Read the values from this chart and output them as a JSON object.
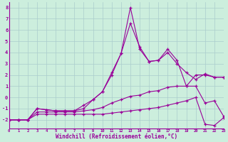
{
  "x": [
    0,
    1,
    2,
    3,
    4,
    5,
    6,
    7,
    8,
    9,
    10,
    11,
    12,
    13,
    14,
    15,
    16,
    17,
    18,
    19,
    20,
    21,
    22,
    23
  ],
  "line1": [
    -2,
    -2,
    -2,
    -1.0,
    -1.1,
    -1.2,
    -1.2,
    -1.2,
    -1.0,
    -0.2,
    0.5,
    2.0,
    3.9,
    8.0,
    4.3,
    3.2,
    3.3,
    4.3,
    3.3,
    1.0,
    2.0,
    2.0,
    1.8,
    1.8
  ],
  "line2": [
    -2,
    -2,
    -2,
    -1.0,
    -1.1,
    -1.2,
    -1.2,
    -1.2,
    -0.7,
    -0.2,
    0.5,
    2.2,
    3.9,
    6.6,
    4.5,
    3.2,
    3.3,
    4.0,
    3.0,
    2.2,
    1.6,
    2.1,
    1.8,
    1.8
  ],
  "line3": [
    -2,
    -2,
    -2,
    -1.3,
    -1.3,
    -1.3,
    -1.3,
    -1.3,
    -1.2,
    -1.1,
    -0.9,
    -0.5,
    -0.2,
    0.1,
    0.2,
    0.5,
    0.6,
    0.9,
    1.0,
    1.0,
    1.0,
    -0.5,
    -0.3,
    -1.7
  ],
  "line4": [
    -2,
    -2,
    -2,
    -1.5,
    -1.5,
    -1.5,
    -1.5,
    -1.5,
    -1.5,
    -1.5,
    -1.5,
    -1.4,
    -1.3,
    -1.2,
    -1.1,
    -1.0,
    -0.9,
    -0.7,
    -0.5,
    -0.3,
    0.0,
    -2.4,
    -2.5,
    -1.8
  ],
  "color": "#990099",
  "bg_color": "#cceedd",
  "grid_color": "#aacccc",
  "xlabel": "Windchill (Refroidissement éolien,°C)",
  "ylim": [
    -2.8,
    8.5
  ],
  "xlim": [
    0,
    23
  ],
  "yticks": [
    -2,
    -1,
    0,
    1,
    2,
    3,
    4,
    5,
    6,
    7,
    8
  ],
  "xticks": [
    0,
    1,
    2,
    3,
    4,
    5,
    6,
    7,
    8,
    9,
    10,
    11,
    12,
    13,
    14,
    15,
    16,
    17,
    18,
    19,
    20,
    21,
    22,
    23
  ]
}
